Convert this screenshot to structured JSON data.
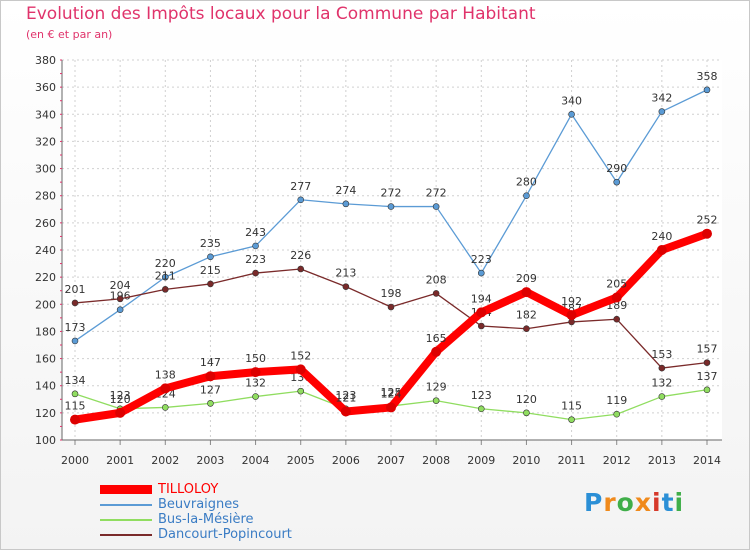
{
  "header": {
    "title": "Evolution des Impôts locaux pour la Commune par Habitant",
    "subtitle": "(en € et par an)"
  },
  "logo": {
    "text": "Proxiti",
    "colors": [
      "#2b8fd6",
      "#f08a1c",
      "#3fae49",
      "#f08a1c",
      "#d6392b",
      "#2b8fd6",
      "#3fae49"
    ]
  },
  "chart_data": {
    "type": "line",
    "title": "Evolution des Impôts locaux pour la Commune par Habitant",
    "subtitle": "(en € et par an)",
    "xlabel": "",
    "ylabel": "",
    "ylim": [
      100,
      380
    ],
    "yticks": [
      100,
      120,
      140,
      160,
      180,
      200,
      220,
      240,
      260,
      280,
      300,
      320,
      340,
      360,
      380
    ],
    "grid": true,
    "legend_position": "bottom-left",
    "x": [
      "2000",
      "2001",
      "2002",
      "2003",
      "2004",
      "2005",
      "2006",
      "2007",
      "2008",
      "2009",
      "2010",
      "2011",
      "2012",
      "2013",
      "2014"
    ],
    "series": [
      {
        "name": "TILLOLOY",
        "color": "#ff0000",
        "values": [
          115,
          120,
          138,
          147,
          150,
          152,
          121,
          124,
          165,
          194,
          209,
          192,
          205,
          240,
          252
        ]
      },
      {
        "name": "Beuvraignes",
        "color": "#5b9bd5",
        "values": [
          173,
          196,
          220,
          235,
          243,
          277,
          274,
          272,
          272,
          223,
          280,
          340,
          290,
          342,
          358
        ]
      },
      {
        "name": "Bus-la-Mésière",
        "color": "#90dd60",
        "values": [
          134,
          123,
          124,
          127,
          132,
          136,
          123,
          125,
          129,
          123,
          120,
          115,
          119,
          132,
          137
        ]
      },
      {
        "name": "Dancourt-Popincourt",
        "color": "#7a2a2a",
        "values": [
          201,
          204,
          211,
          215,
          223,
          226,
          213,
          198,
          208,
          184,
          182,
          187,
          189,
          153,
          157
        ]
      }
    ]
  }
}
